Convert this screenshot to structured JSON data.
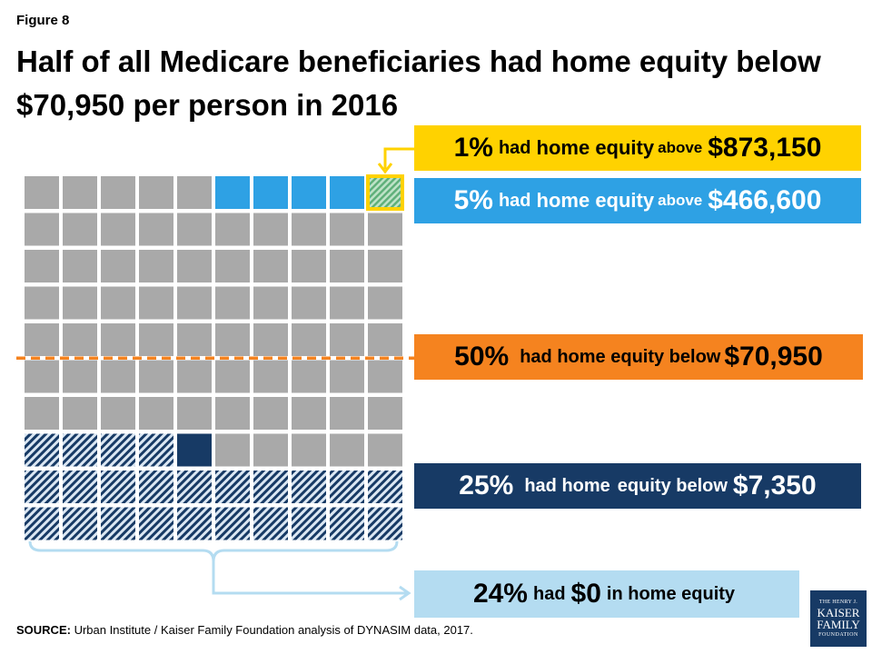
{
  "figure_label": "Figure 8",
  "title": "Half of all Medicare beneficiaries had home equity below $70,950 per person in 2016",
  "callouts": {
    "top1": {
      "pct": "1%",
      "text_a": "had",
      "text_b": "home equity",
      "text_c": "above",
      "value": "$873,150"
    },
    "top5": {
      "pct": "5%",
      "text_a": "had",
      "text_b": "home equity",
      "text_c": "above",
      "value": "$466,600"
    },
    "half": {
      "pct": "50%",
      "text_a": "had home equity below",
      "value": "$70,950"
    },
    "q25": {
      "pct": "25%",
      "text_a": "had home",
      "text_b": "equity below",
      "value": "$7,350"
    },
    "zero": {
      "pct": "24%",
      "text_a": "had",
      "value": "$0",
      "text_b": "in home equity"
    }
  },
  "source": {
    "label": "SOURCE:",
    "text": "Urban Institute / Kaiser Family Foundation analysis of DYNASIM data, 2017."
  },
  "logo": {
    "line1": "THE HENRY J.",
    "line2": "KAISER",
    "line3": "FAMILY",
    "line4": "FOUNDATION"
  },
  "colors": {
    "gray": "#a9a9a9",
    "blue": "#2ea1e4",
    "yellow": "#ffd200",
    "green_hatch": "#5fb07a",
    "navy": "#173a65",
    "navy_hatch_bg": "#dbe7f3",
    "orange": "#f5831f",
    "light_blue": "#b4dcf1"
  },
  "chart_data": {
    "type": "waffle",
    "grid": {
      "rows": 10,
      "cols": 10
    },
    "total_cells": 100,
    "categories": [
      {
        "label": "$0 in home equity",
        "percent": 24,
        "style": "navy-hatched"
      },
      {
        "label": "below $7,350",
        "percent": 25,
        "style": "navy-solid-marker"
      },
      {
        "label": "below $70,950",
        "percent": 50,
        "style": "orange-line"
      },
      {
        "label": "above $466,600",
        "percent": 5,
        "style": "blue"
      },
      {
        "label": "above $873,150",
        "percent": 1,
        "style": "yellow-outline-green-hatched"
      }
    ]
  }
}
